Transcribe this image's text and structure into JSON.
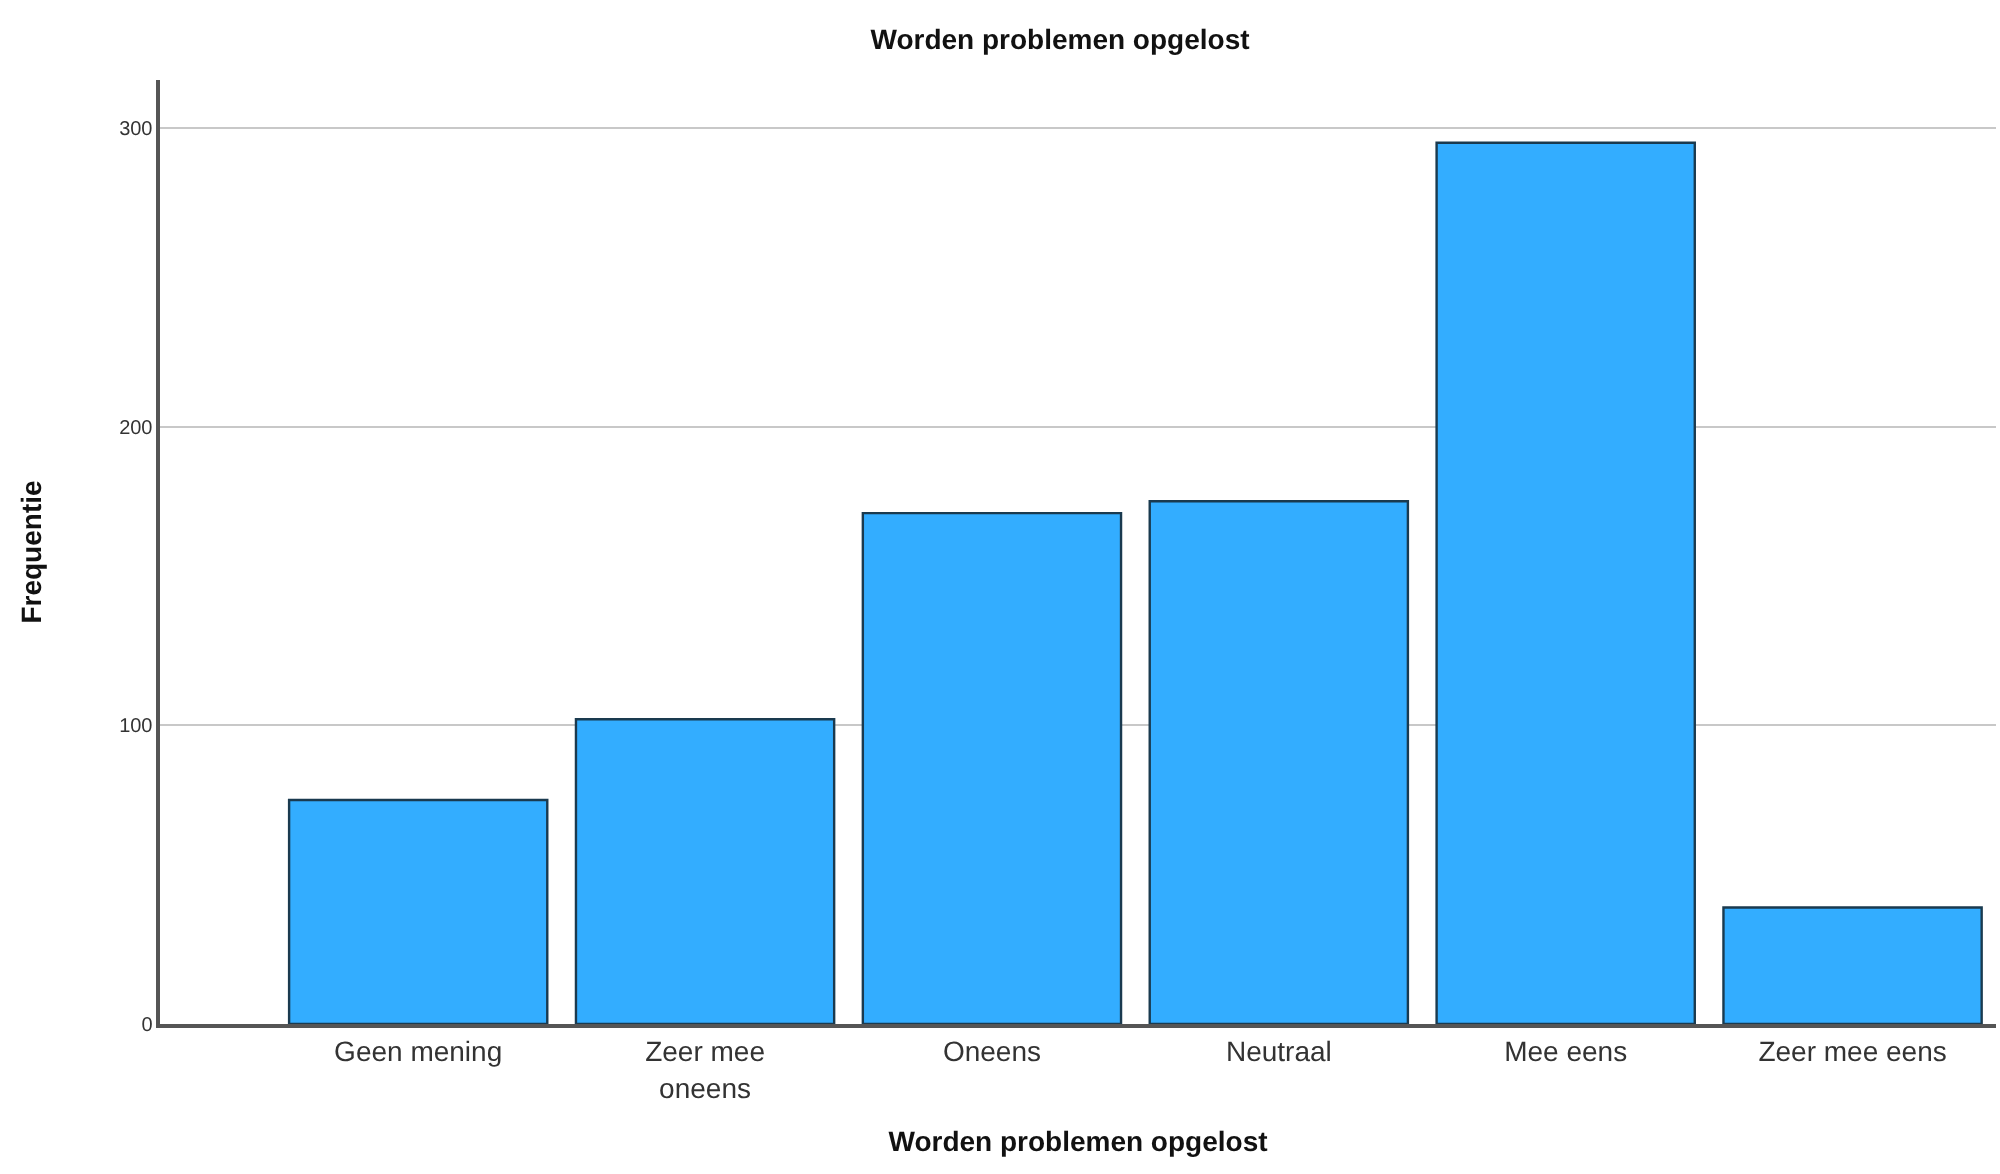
{
  "chart_data": {
    "type": "bar",
    "title": "Worden problemen opgelost",
    "xlabel": "Worden problemen opgelost",
    "ylabel": "Frequentie",
    "categories": [
      "Geen mening",
      "Zeer mee oneens",
      "Oneens",
      "Neutraal",
      "Mee eens",
      "Zeer mee eens"
    ],
    "values": [
      75,
      102,
      171,
      175,
      295,
      39
    ],
    "color": "#33adff",
    "ylim": [
      0,
      316
    ],
    "yticks": [
      0,
      100,
      200,
      300
    ],
    "grid": "y",
    "legend": false
  }
}
